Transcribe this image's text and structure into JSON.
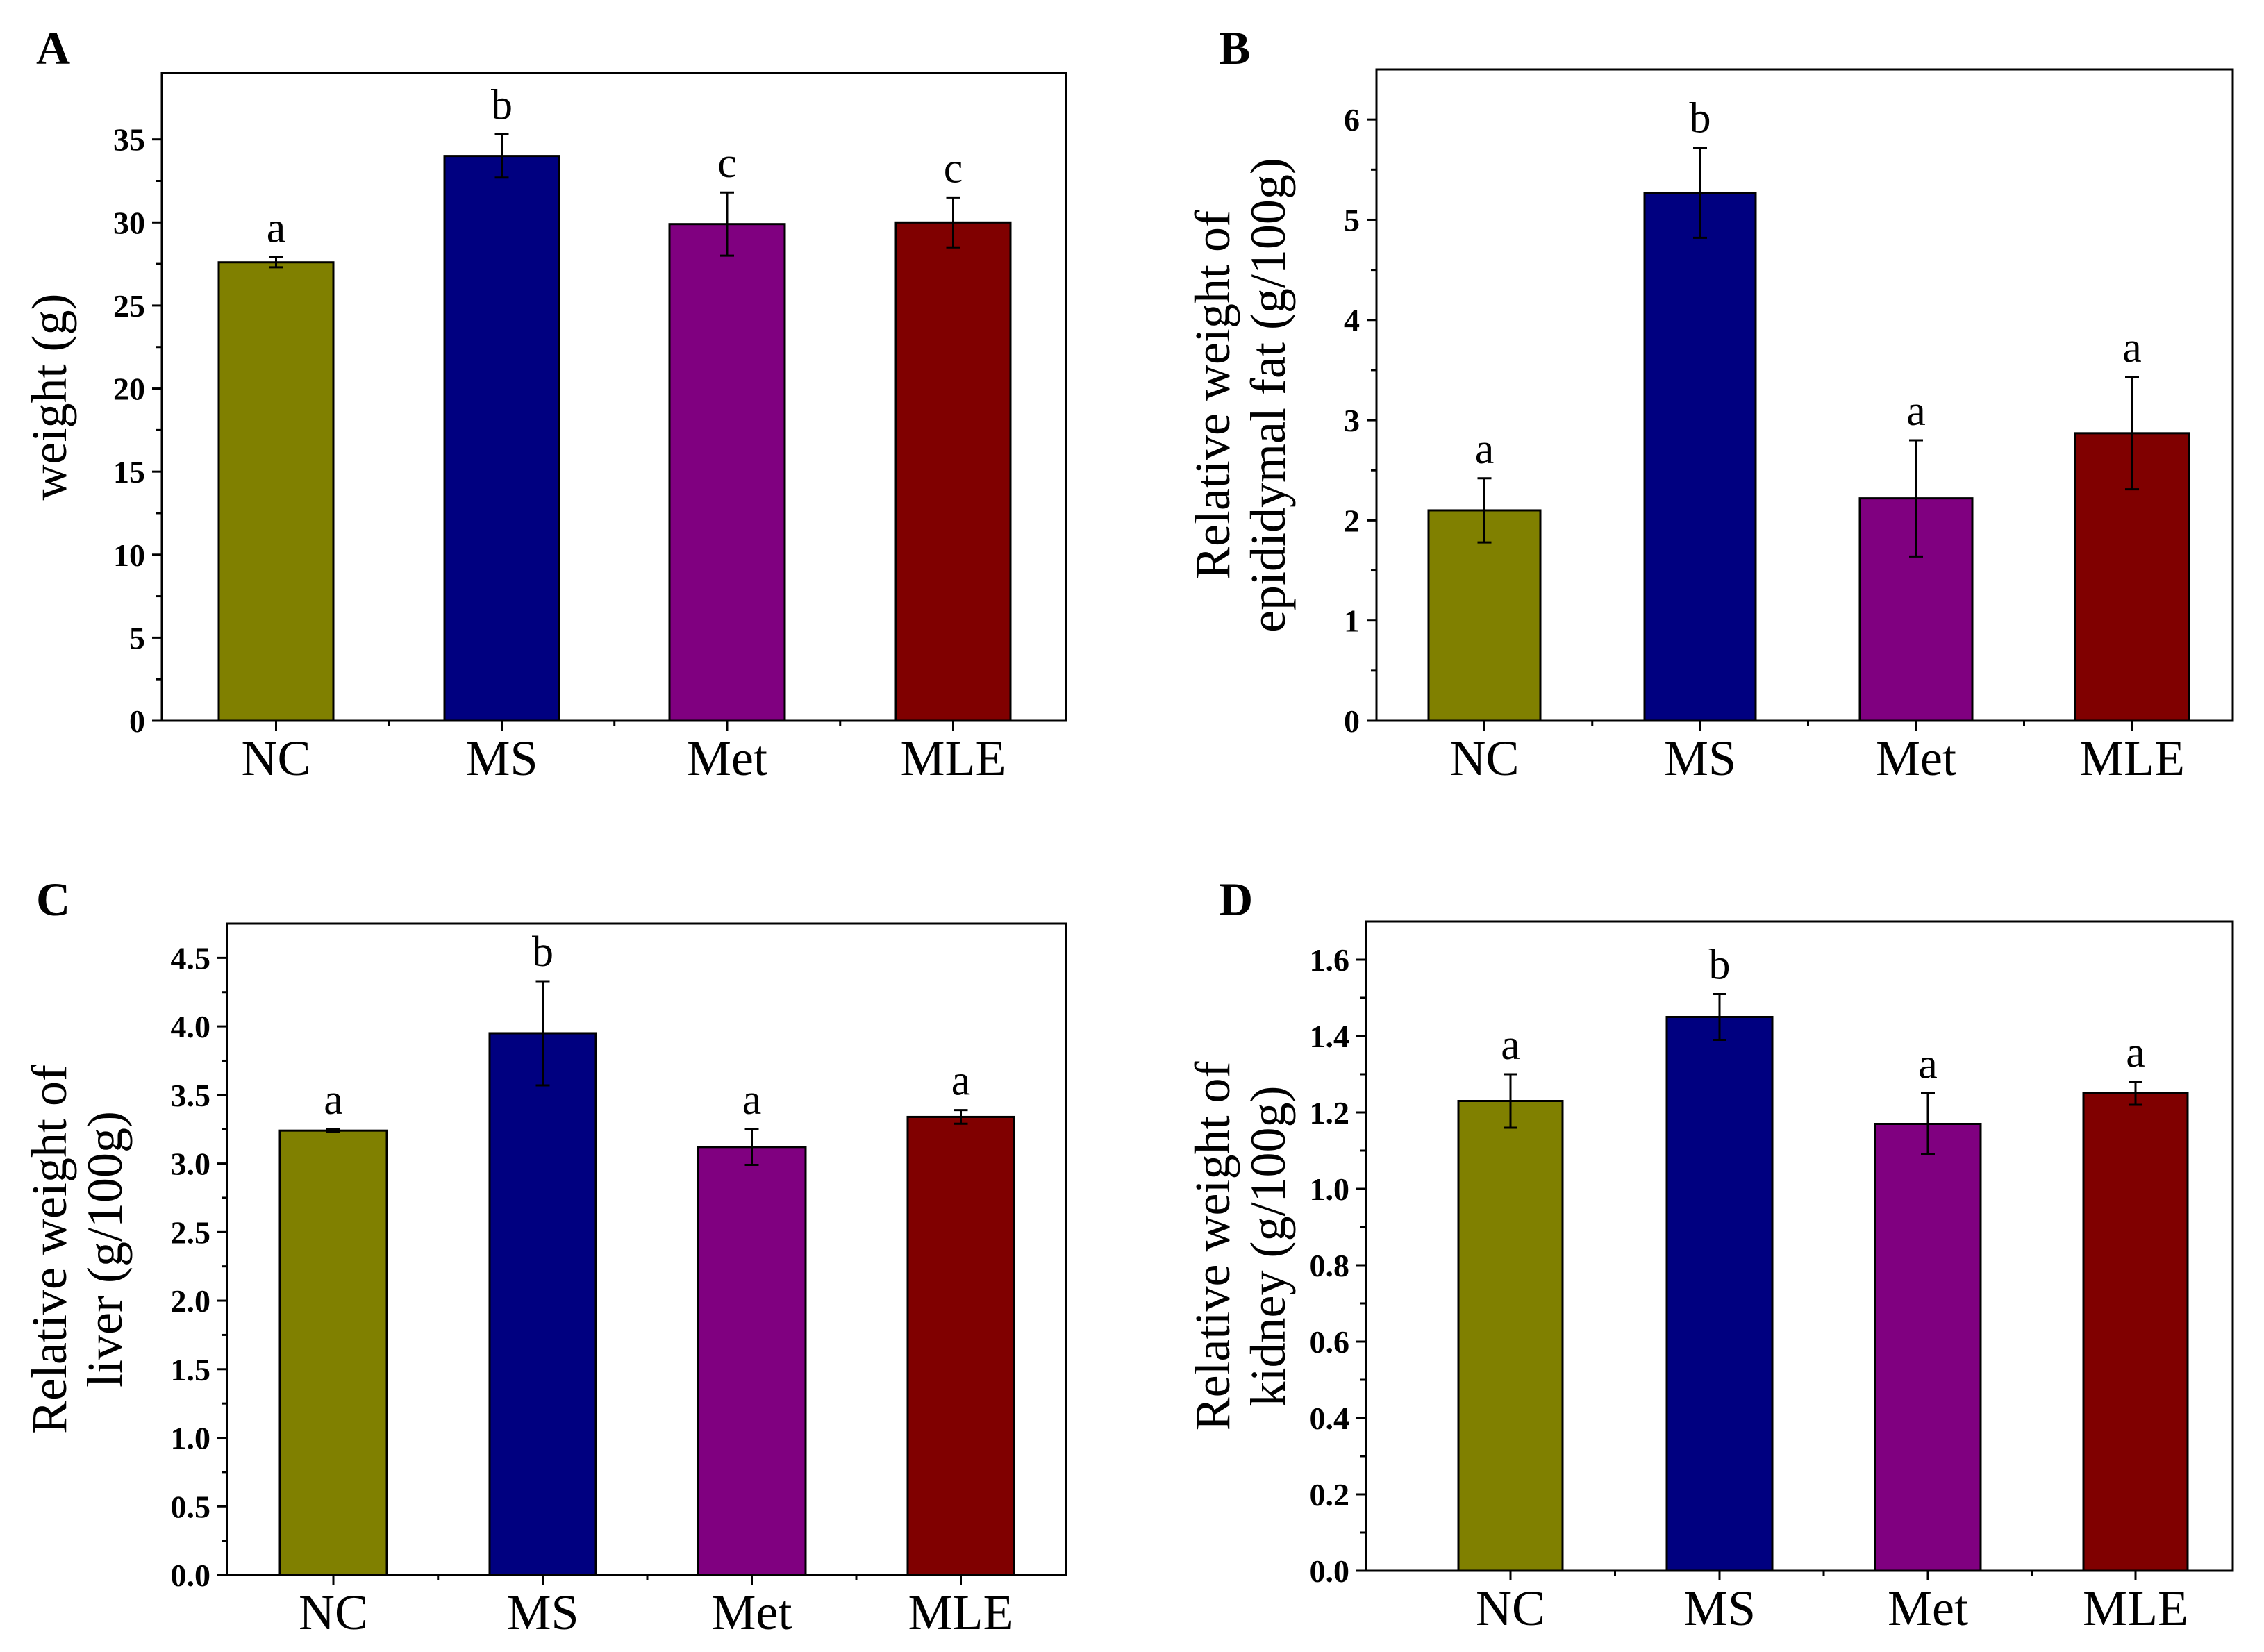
{
  "chart_data": [
    {
      "panel": "A",
      "type": "bar",
      "categories": [
        "NC",
        "MS",
        "Met",
        "MLE"
      ],
      "values": [
        27.6,
        34.0,
        29.9,
        30.0
      ],
      "errors": [
        0.3,
        1.3,
        1.9,
        1.5
      ],
      "significance": [
        "a",
        "b",
        "c",
        "c"
      ],
      "colors": [
        "#808000",
        "#000080",
        "#800080",
        "#800000"
      ],
      "ylabel_lines": [
        "weight (g)"
      ],
      "ylim": [
        0,
        39
      ],
      "yticks": [
        0,
        5,
        10,
        15,
        20,
        25,
        30,
        35
      ],
      "ytick_labels": [
        "0",
        "5",
        "10",
        "15",
        "20",
        "25",
        "30",
        "35"
      ]
    },
    {
      "panel": "B",
      "type": "bar",
      "categories": [
        "NC",
        "MS",
        "Met",
        "MLE"
      ],
      "values": [
        2.1,
        5.27,
        2.22,
        2.87
      ],
      "errors": [
        0.32,
        0.45,
        0.58,
        0.56
      ],
      "significance": [
        "a",
        "b",
        "a",
        "a"
      ],
      "colors": [
        "#808000",
        "#000080",
        "#800080",
        "#800000"
      ],
      "ylabel_lines": [
        "Relative weight of",
        "epididymal fat (g/100g)"
      ],
      "ylim": [
        0,
        6.5
      ],
      "yticks": [
        0,
        1,
        2,
        3,
        4,
        5,
        6
      ],
      "ytick_labels": [
        "0",
        "1",
        "2",
        "3",
        "4",
        "5",
        "6"
      ]
    },
    {
      "panel": "C",
      "type": "bar",
      "categories": [
        "NC",
        "MS",
        "Met",
        "MLE"
      ],
      "values": [
        3.24,
        3.95,
        3.12,
        3.34
      ],
      "errors": [
        0.01,
        0.38,
        0.13,
        0.05
      ],
      "significance": [
        "a",
        "b",
        "a",
        "a"
      ],
      "colors": [
        "#808000",
        "#000080",
        "#800080",
        "#800000"
      ],
      "ylabel_lines": [
        "Relative weight of",
        "liver (g/100g)"
      ],
      "ylim": [
        0,
        4.75
      ],
      "yticks": [
        0,
        0.5,
        1,
        1.5,
        2,
        2.5,
        3,
        3.5,
        4,
        4.5
      ],
      "ytick_labels": [
        "0.0",
        "0.5",
        "1.0",
        "1.5",
        "2.0",
        "2.5",
        "3.0",
        "3.5",
        "4.0",
        "4.5"
      ]
    },
    {
      "panel": "D",
      "type": "bar",
      "categories": [
        "NC",
        "MS",
        "Met",
        "MLE"
      ],
      "values": [
        1.23,
        1.45,
        1.17,
        1.25
      ],
      "errors": [
        0.07,
        0.06,
        0.08,
        0.03
      ],
      "significance": [
        "a",
        "b",
        "a",
        "a"
      ],
      "colors": [
        "#808000",
        "#000080",
        "#800080",
        "#800000"
      ],
      "ylabel_lines": [
        "Relative weight of",
        "kidney (g/100g)"
      ],
      "ylim": [
        0,
        1.7
      ],
      "yticks": [
        0,
        0.2,
        0.4,
        0.6,
        0.8,
        1.0,
        1.2,
        1.4,
        1.6
      ],
      "ytick_labels": [
        "0.0",
        "0.2",
        "0.4",
        "0.6",
        "0.8",
        "1.0",
        "1.2",
        "1.4",
        "1.6"
      ]
    }
  ]
}
